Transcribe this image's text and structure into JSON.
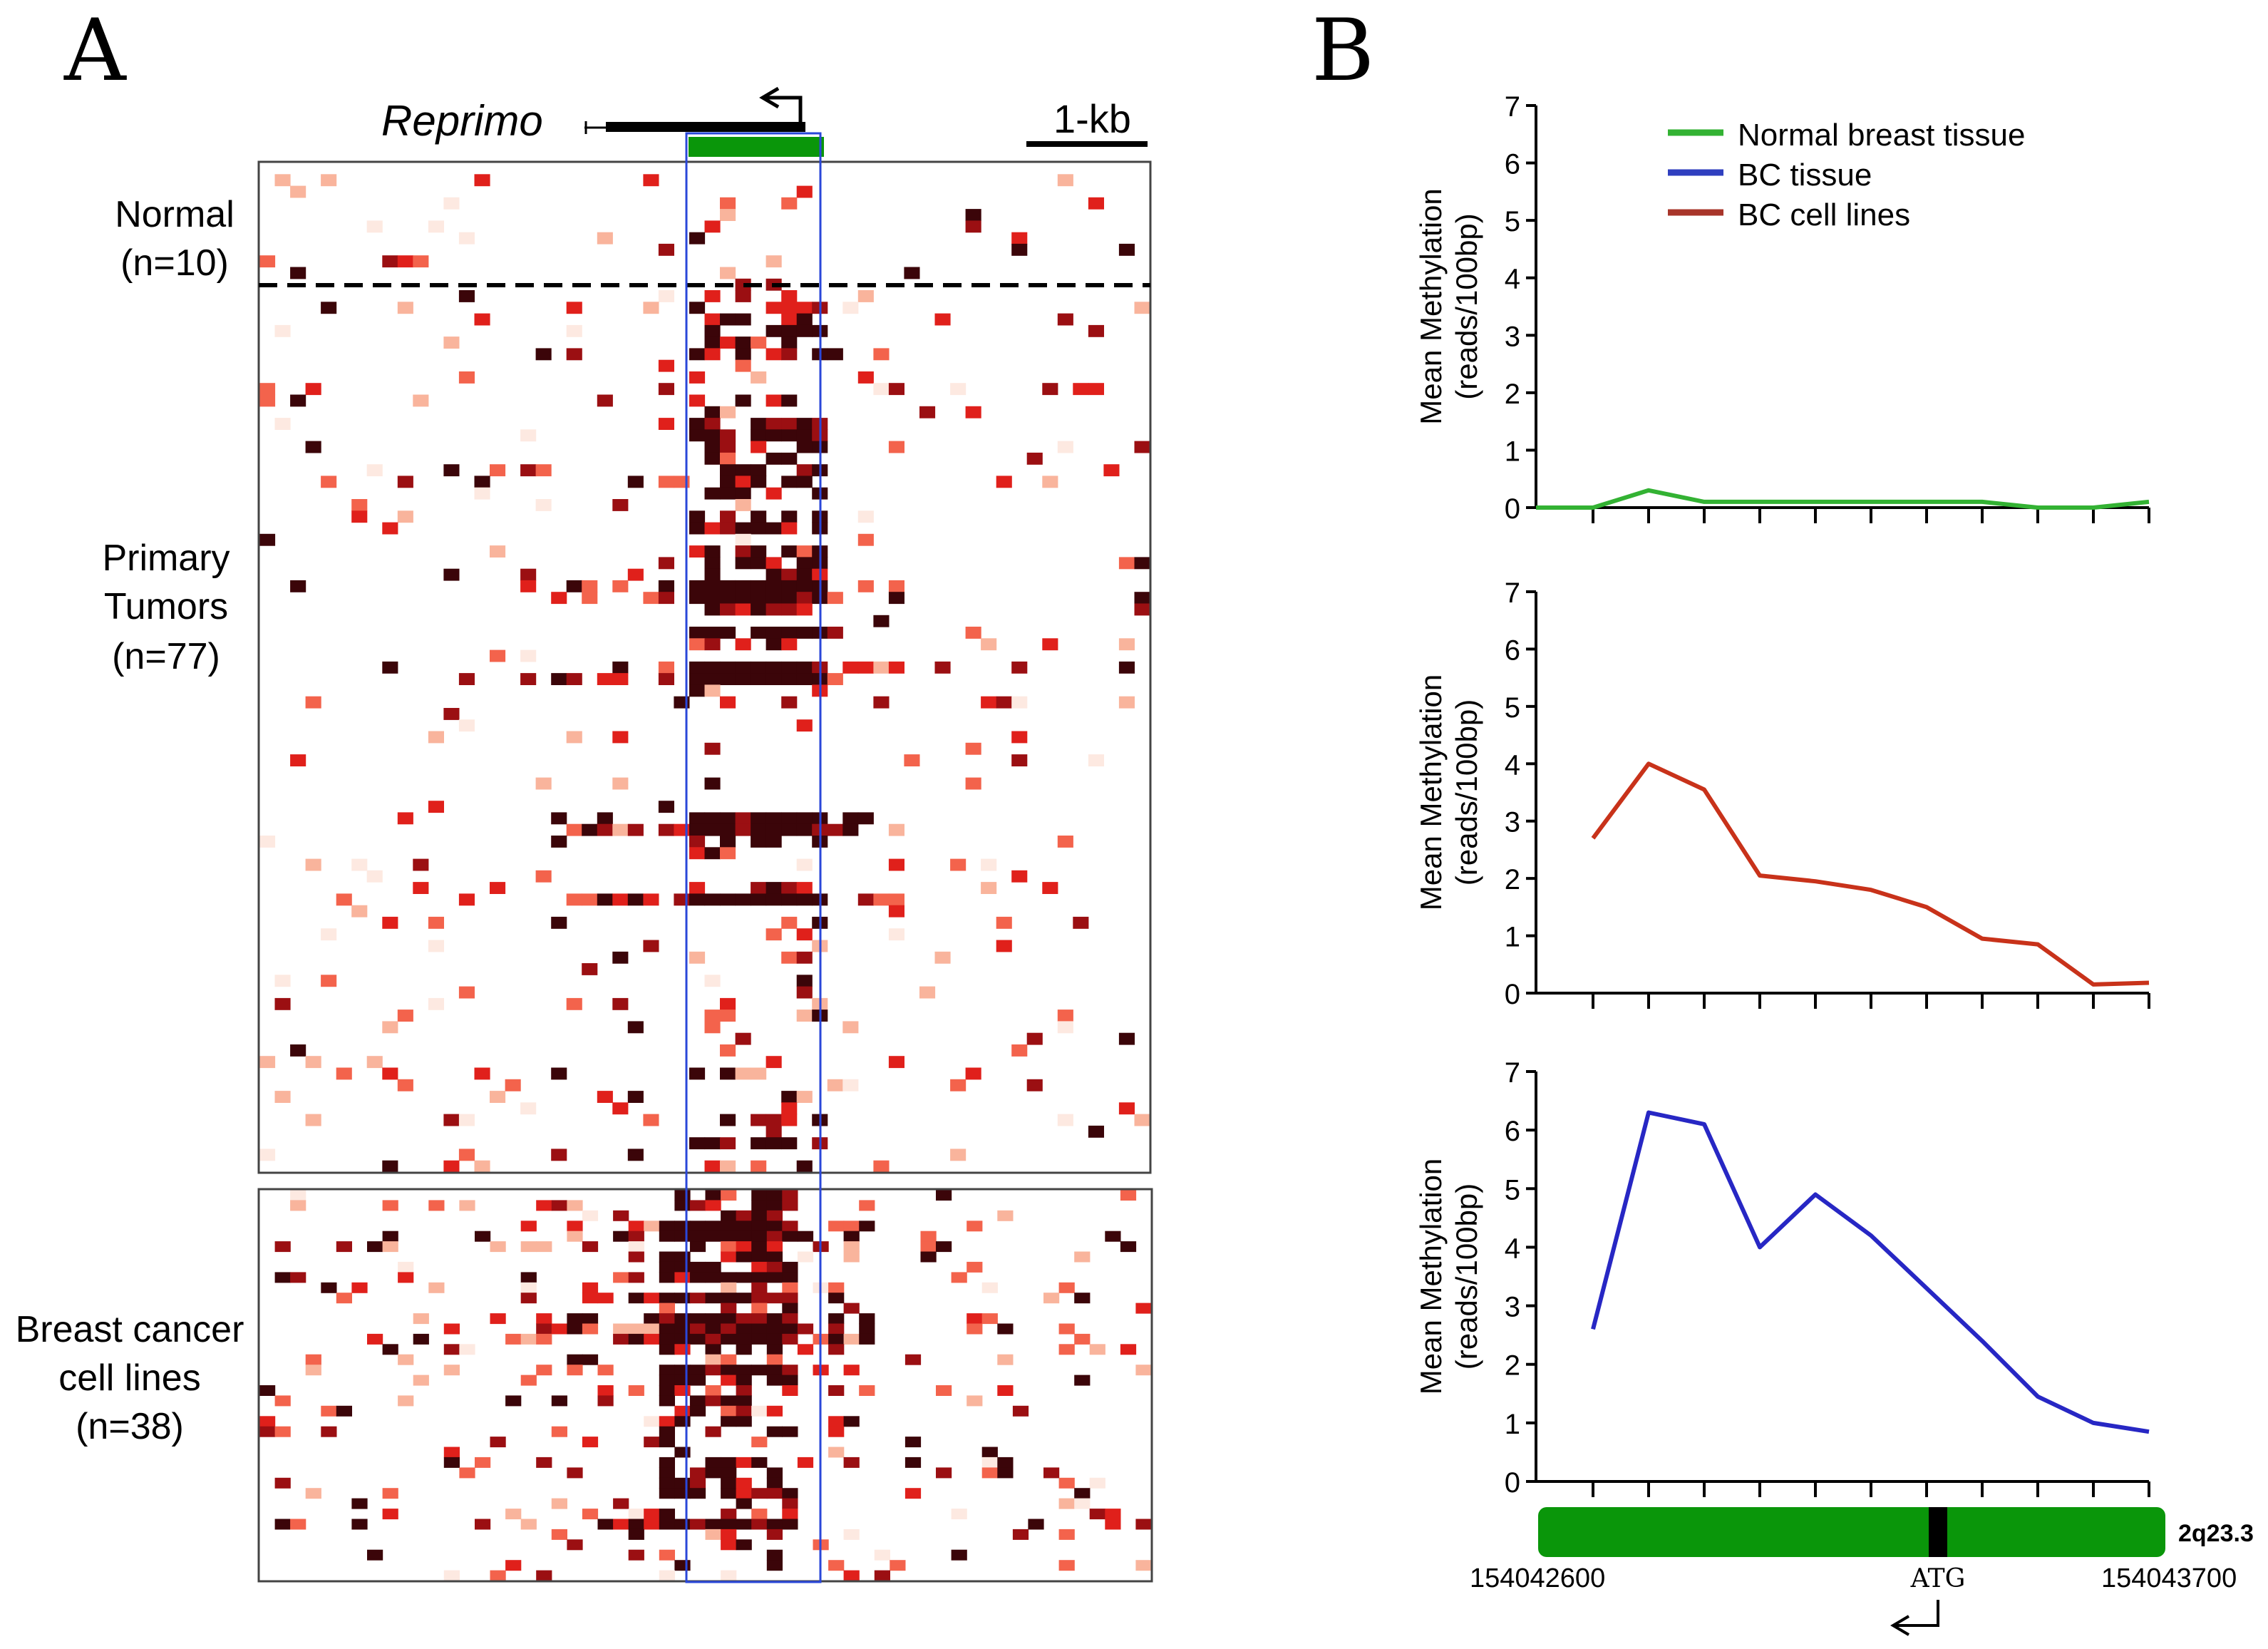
{
  "panel_a": {
    "label": "A",
    "gene_name": "Reprimo",
    "scale_label": "1-kb",
    "groups": [
      {
        "name_line1": "Normal",
        "name_line2": "(n=10)",
        "name_line3": ""
      },
      {
        "name_line1": "Primary",
        "name_line2": "Tumors",
        "name_line3": "(n=77)"
      },
      {
        "name_line1": "Breast cancer",
        "name_line2": "cell lines",
        "name_line3": "(n=38)"
      }
    ],
    "heatmap_colors": [
      "#fde9e1",
      "#f9b49c",
      "#f3634c",
      "#e0201b",
      "#9b0f12",
      "#3b0509"
    ]
  },
  "panel_b": {
    "label": "B",
    "legend": [
      {
        "label": "Normal breast tissue",
        "color": "#33b233"
      },
      {
        "label": "BC tissue",
        "color": "#2f3fbf"
      },
      {
        "label": "BC cell lines",
        "color": "#a8352a"
      }
    ],
    "chromosome_band": "2q23.3",
    "coord_start": "154042600",
    "coord_end": "154043700",
    "atg_label": "ATG"
  },
  "chart_data": [
    {
      "type": "line",
      "title": "",
      "ylabel": "Mean Methylation",
      "ylabel_line2": "(reads/100bp)",
      "ylim": [
        0,
        7
      ],
      "yticks": [
        "0",
        "1",
        "2",
        "3",
        "4",
        "5",
        "6",
        "7"
      ],
      "x": [
        1,
        2,
        3,
        4,
        5,
        6,
        7,
        8,
        9,
        10,
        11
      ],
      "series": [
        {
          "name": "Normal breast tissue",
          "color": "#33b233",
          "values": [
            0.0,
            0.3,
            0.1,
            0.1,
            0.1,
            0.1,
            0.1,
            0.1,
            0.0,
            0.0,
            0.1
          ]
        }
      ]
    },
    {
      "type": "line",
      "title": "",
      "ylabel": "Mean Methylation",
      "ylabel_line2": "(reads/100bp)",
      "ylim": [
        0,
        7
      ],
      "yticks": [
        "0",
        "1",
        "2",
        "3",
        "4",
        "5",
        "6",
        "7"
      ],
      "x": [
        1,
        2,
        3,
        4,
        5,
        6,
        7,
        8,
        9,
        10,
        11
      ],
      "series": [
        {
          "name": "BC cell lines",
          "color": "#c8321a",
          "values": [
            2.7,
            4.0,
            3.55,
            2.05,
            1.95,
            1.8,
            1.5,
            0.95,
            0.85,
            0.15,
            0.18
          ]
        }
      ]
    },
    {
      "type": "line",
      "title": "",
      "ylabel": "Mean Methylation",
      "ylabel_line2": "(reads/100bp)",
      "ylim": [
        0,
        7
      ],
      "yticks": [
        "0",
        "1",
        "2",
        "3",
        "4",
        "5",
        "6",
        "7"
      ],
      "x": [
        1,
        2,
        3,
        4,
        5,
        6,
        7,
        8,
        9,
        10,
        11
      ],
      "series": [
        {
          "name": "BC tissue",
          "color": "#2727c4",
          "values": [
            2.6,
            6.3,
            6.1,
            4.0,
            4.9,
            4.2,
            3.3,
            2.4,
            1.45,
            1.0,
            0.85
          ]
        }
      ]
    }
  ]
}
